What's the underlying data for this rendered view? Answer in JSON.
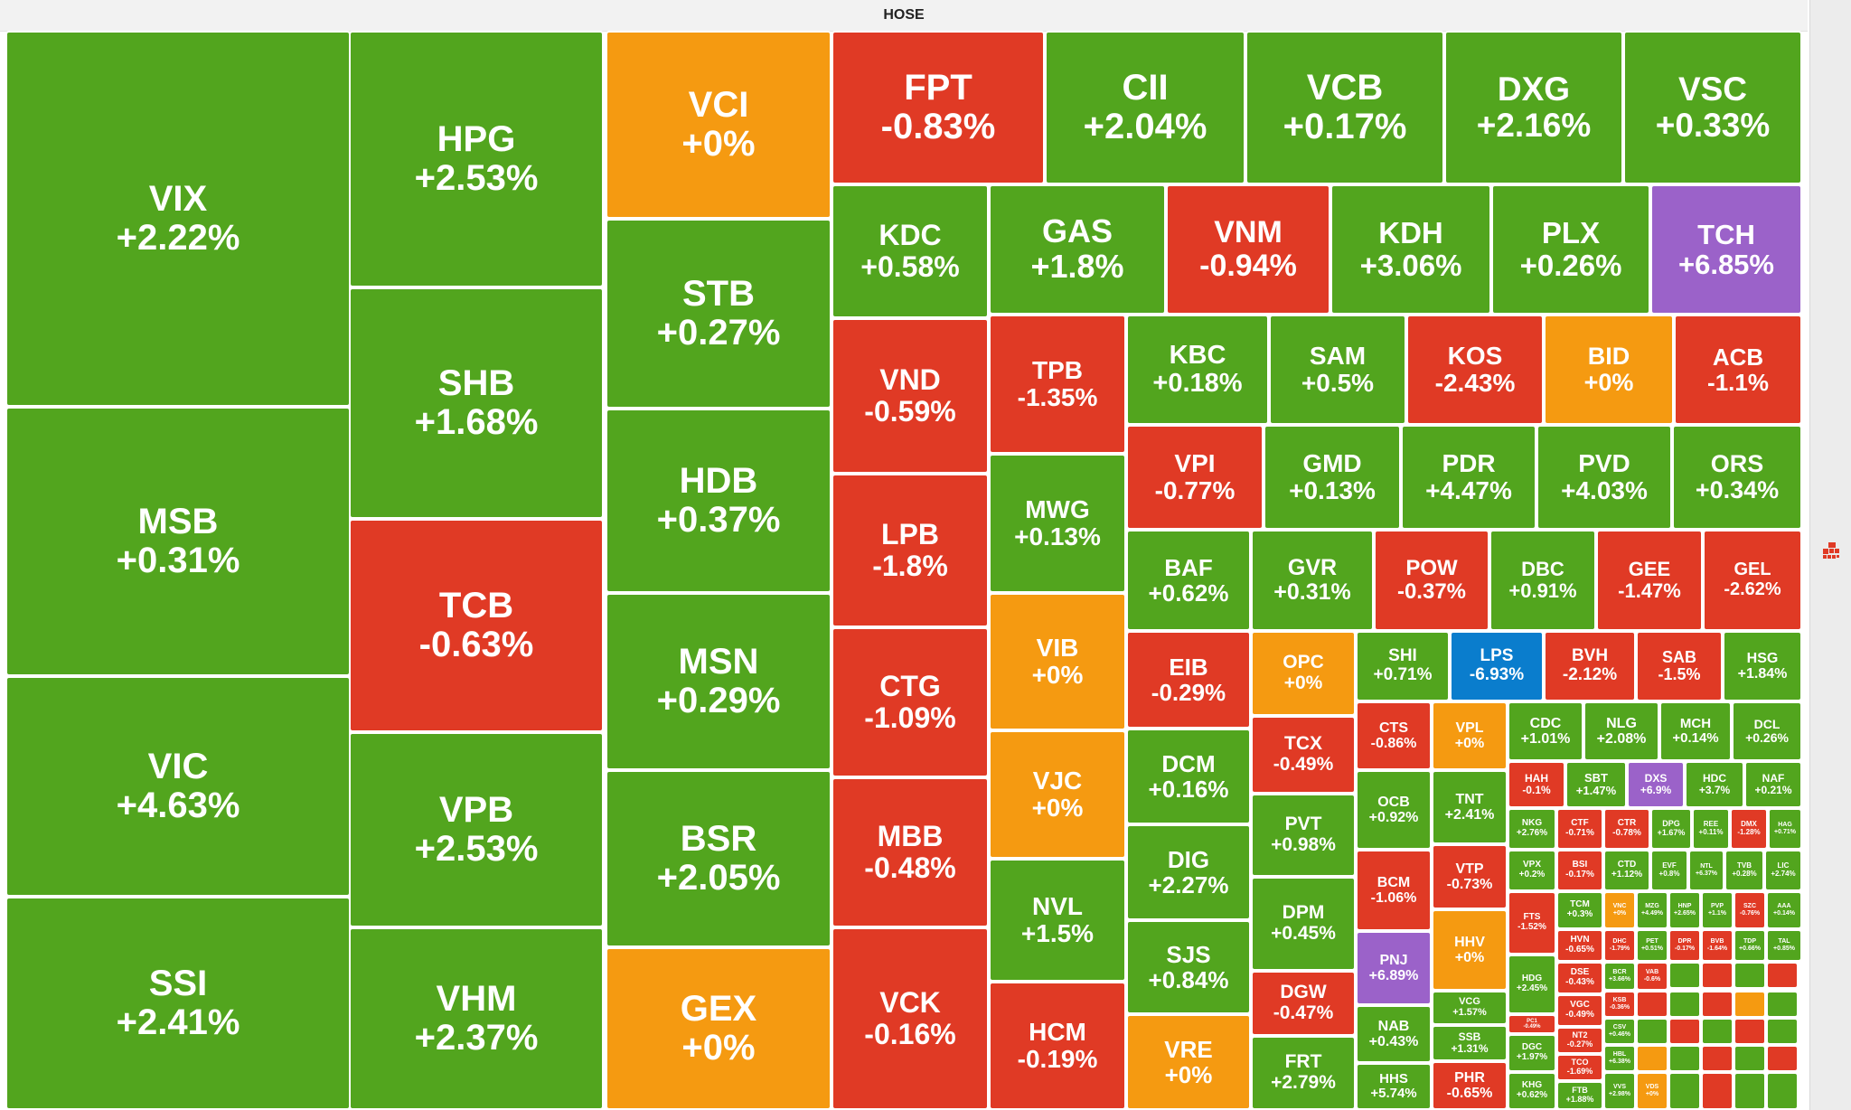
{
  "header": {
    "title": "HOSE"
  },
  "colors": {
    "up": "#52a51e",
    "down": "#e03a25",
    "flat": "#f59a11",
    "ceiling": "#9b62c9",
    "floor": "#0a7dcd"
  },
  "icons": {
    "rail": "treemap-grid-icon"
  },
  "chart_data": {
    "type": "treemap",
    "market": "HOSE",
    "tiles": [
      {
        "symbol": "VIX",
        "change": "+2.22%",
        "value": 2.22
      },
      {
        "symbol": "MSB",
        "change": "+0.31%",
        "value": 0.31
      },
      {
        "symbol": "VIC",
        "change": "+4.63%",
        "value": 4.63
      },
      {
        "symbol": "SSI",
        "change": "+2.41%",
        "value": 2.41
      },
      {
        "symbol": "HPG",
        "change": "+2.53%",
        "value": 2.53
      },
      {
        "symbol": "SHB",
        "change": "+1.68%",
        "value": 1.68
      },
      {
        "symbol": "TCB",
        "change": "-0.63%",
        "value": -0.63
      },
      {
        "symbol": "VPB",
        "change": "+2.53%",
        "value": 2.53
      },
      {
        "symbol": "VHM",
        "change": "+2.37%",
        "value": 2.37
      },
      {
        "symbol": "VCI",
        "change": "+0%",
        "value": 0
      },
      {
        "symbol": "STB",
        "change": "+0.27%",
        "value": 0.27
      },
      {
        "symbol": "HDB",
        "change": "+0.37%",
        "value": 0.37
      },
      {
        "symbol": "MSN",
        "change": "+0.29%",
        "value": 0.29
      },
      {
        "symbol": "BSR",
        "change": "+2.05%",
        "value": 2.05
      },
      {
        "symbol": "GEX",
        "change": "+0%",
        "value": 0
      },
      {
        "symbol": "FPT",
        "change": "-0.83%",
        "value": -0.83
      },
      {
        "symbol": "CII",
        "change": "+2.04%",
        "value": 2.04
      },
      {
        "symbol": "VCB",
        "change": "+0.17%",
        "value": 0.17
      },
      {
        "symbol": "DXG",
        "change": "+2.16%",
        "value": 2.16
      },
      {
        "symbol": "VSC",
        "change": "+0.33%",
        "value": 0.33
      },
      {
        "symbol": "KDC",
        "change": "+0.58%",
        "value": 0.58
      },
      {
        "symbol": "VND",
        "change": "-0.59%",
        "value": -0.59
      },
      {
        "symbol": "LPB",
        "change": "-1.8%",
        "value": -1.8
      },
      {
        "symbol": "CTG",
        "change": "-1.09%",
        "value": -1.09
      },
      {
        "symbol": "MBB",
        "change": "-0.48%",
        "value": -0.48
      },
      {
        "symbol": "VCK",
        "change": "-0.16%",
        "value": -0.16
      },
      {
        "symbol": "GAS",
        "change": "+1.8%",
        "value": 1.8
      },
      {
        "symbol": "VNM",
        "change": "-0.94%",
        "value": -0.94
      },
      {
        "symbol": "KDH",
        "change": "+3.06%",
        "value": 3.06
      },
      {
        "symbol": "PLX",
        "change": "+0.26%",
        "value": 0.26
      },
      {
        "symbol": "TCH",
        "change": "+6.85%",
        "value": 6.85
      },
      {
        "symbol": "TPB",
        "change": "-1.35%",
        "value": -1.35
      },
      {
        "symbol": "MWG",
        "change": "+0.13%",
        "value": 0.13
      },
      {
        "symbol": "VIB",
        "change": "+0%",
        "value": 0
      },
      {
        "symbol": "VJC",
        "change": "+0%",
        "value": 0
      },
      {
        "symbol": "NVL",
        "change": "+1.5%",
        "value": 1.5
      },
      {
        "symbol": "HCM",
        "change": "-0.19%",
        "value": -0.19
      },
      {
        "symbol": "KBC",
        "change": "+0.18%",
        "value": 0.18
      },
      {
        "symbol": "SAM",
        "change": "+0.5%",
        "value": 0.5
      },
      {
        "symbol": "KOS",
        "change": "-2.43%",
        "value": -2.43
      },
      {
        "symbol": "BID",
        "change": "+0%",
        "value": 0
      },
      {
        "symbol": "ACB",
        "change": "-1.1%",
        "value": -1.1
      },
      {
        "symbol": "VPI",
        "change": "-0.77%",
        "value": -0.77
      },
      {
        "symbol": "GMD",
        "change": "+0.13%",
        "value": 0.13
      },
      {
        "symbol": "PDR",
        "change": "+4.47%",
        "value": 4.47
      },
      {
        "symbol": "PVD",
        "change": "+4.03%",
        "value": 4.03
      },
      {
        "symbol": "ORS",
        "change": "+0.34%",
        "value": 0.34
      },
      {
        "symbol": "BAF",
        "change": "+0.62%",
        "value": 0.62
      },
      {
        "symbol": "GVR",
        "change": "+0.31%",
        "value": 0.31
      },
      {
        "symbol": "POW",
        "change": "-0.37%",
        "value": -0.37
      },
      {
        "symbol": "DBC",
        "change": "+0.91%",
        "value": 0.91
      },
      {
        "symbol": "GEE",
        "change": "-1.47%",
        "value": -1.47
      },
      {
        "symbol": "GEL",
        "change": "-2.62%",
        "value": -2.62
      },
      {
        "symbol": "EIB",
        "change": "-0.29%",
        "value": -0.29
      },
      {
        "symbol": "OPC",
        "change": "+0%",
        "value": 0
      },
      {
        "symbol": "SHI",
        "change": "+0.71%",
        "value": 0.71
      },
      {
        "symbol": "LPS",
        "change": "-6.93%",
        "value": -6.93
      },
      {
        "symbol": "BVH",
        "change": "-2.12%",
        "value": -2.12
      },
      {
        "symbol": "SAB",
        "change": "-1.5%",
        "value": -1.5
      },
      {
        "symbol": "HSG",
        "change": "+1.84%",
        "value": 1.84
      },
      {
        "symbol": "DCM",
        "change": "+0.16%",
        "value": 0.16
      },
      {
        "symbol": "TCX",
        "change": "-0.49%",
        "value": -0.49
      },
      {
        "symbol": "CTS",
        "change": "-0.86%",
        "value": -0.86
      },
      {
        "symbol": "VPL",
        "change": "+0%",
        "value": 0
      },
      {
        "symbol": "CDC",
        "change": "+1.01%",
        "value": 1.01
      },
      {
        "symbol": "NLG",
        "change": "+2.08%",
        "value": 2.08
      },
      {
        "symbol": "MCH",
        "change": "+0.14%",
        "value": 0.14
      },
      {
        "symbol": "DCL",
        "change": "+0.26%",
        "value": 0.26
      },
      {
        "symbol": "DIG",
        "change": "+2.27%",
        "value": 2.27
      },
      {
        "symbol": "PVT",
        "change": "+0.98%",
        "value": 0.98
      },
      {
        "symbol": "OCB",
        "change": "+0.92%",
        "value": 0.92
      },
      {
        "symbol": "TNT",
        "change": "+2.41%",
        "value": 2.41
      },
      {
        "symbol": "HAH",
        "change": "-0.1%",
        "value": -0.1
      },
      {
        "symbol": "SBT",
        "change": "+1.47%",
        "value": 1.47
      },
      {
        "symbol": "DXS",
        "change": "+6.9%",
        "value": 6.9
      },
      {
        "symbol": "HDC",
        "change": "+3.7%",
        "value": 3.7
      },
      {
        "symbol": "NAF",
        "change": "+0.21%",
        "value": 0.21
      },
      {
        "symbol": "NKG",
        "change": "+2.76%",
        "value": 2.76
      },
      {
        "symbol": "CTF",
        "change": "-0.71%",
        "value": -0.71
      },
      {
        "symbol": "CTR",
        "change": "-0.78%",
        "value": -0.78
      },
      {
        "symbol": "DPG",
        "change": "+1.67%",
        "value": 1.67
      },
      {
        "symbol": "REE",
        "change": "+0.11%",
        "value": 0.11
      },
      {
        "symbol": "DMX",
        "change": "-1.28%",
        "value": -1.28
      },
      {
        "symbol": "HAG",
        "change": "+0.71%",
        "value": 0.71
      },
      {
        "symbol": "VTP",
        "change": "-0.73%",
        "value": -0.73
      },
      {
        "symbol": "VPX",
        "change": "+0.2%",
        "value": 0.2
      },
      {
        "symbol": "BSI",
        "change": "-0.17%",
        "value": -0.17
      },
      {
        "symbol": "CTD",
        "change": "+1.12%",
        "value": 1.12
      },
      {
        "symbol": "EVF",
        "change": "+0.8%",
        "value": 0.8
      },
      {
        "symbol": "NTL",
        "change": "+6.37%",
        "value": 6.37
      },
      {
        "symbol": "TVB",
        "change": "+0.28%",
        "value": 0.28
      },
      {
        "symbol": "LIC",
        "change": "+2.74%",
        "value": 2.74
      },
      {
        "symbol": "BCM",
        "change": "-1.06%",
        "value": -1.06
      },
      {
        "symbol": "SJS",
        "change": "+0.84%",
        "value": 0.84
      },
      {
        "symbol": "DPM",
        "change": "+0.45%",
        "value": 0.45
      },
      {
        "symbol": "PNJ",
        "change": "+6.89%",
        "value": 6.89
      },
      {
        "symbol": "HHV",
        "change": "+0%",
        "value": 0
      },
      {
        "symbol": "FTS",
        "change": "-1.52%",
        "value": -1.52
      },
      {
        "symbol": "VCG",
        "change": "+1.57%",
        "value": 1.57
      },
      {
        "symbol": "HDG",
        "change": "+2.45%",
        "value": 2.45
      },
      {
        "symbol": "DGW",
        "change": "-0.47%",
        "value": -0.47
      },
      {
        "symbol": "NAB",
        "change": "+0.43%",
        "value": 0.43
      },
      {
        "symbol": "PC1",
        "change": "-0.49%",
        "value": -0.49
      },
      {
        "symbol": "VRE",
        "change": "+0%",
        "value": 0
      },
      {
        "symbol": "SSB",
        "change": "+1.31%",
        "value": 1.31
      },
      {
        "symbol": "DGC",
        "change": "+1.97%",
        "value": 1.97
      },
      {
        "symbol": "FRT",
        "change": "+2.79%",
        "value": 2.79
      },
      {
        "symbol": "HHS",
        "change": "+5.74%",
        "value": 5.74
      },
      {
        "symbol": "PHR",
        "change": "-0.65%",
        "value": -0.65
      },
      {
        "symbol": "KHG",
        "change": "+0.62%",
        "value": 0.62
      },
      {
        "symbol": "TCM",
        "change": "+0.3%",
        "value": 0.3
      },
      {
        "symbol": "VNC",
        "change": "+0%",
        "value": 0
      },
      {
        "symbol": "MZG",
        "change": "+4.49%",
        "value": 4.49
      },
      {
        "symbol": "HNP",
        "change": "+2.65%",
        "value": 2.65
      },
      {
        "symbol": "PVP",
        "change": "+1.1%",
        "value": 1.1
      },
      {
        "symbol": "SZC",
        "change": "-0.76%",
        "value": -0.76
      },
      {
        "symbol": "HVN",
        "change": "-0.65%",
        "value": -0.65
      },
      {
        "symbol": "DHC",
        "change": "-1.79%",
        "value": -1.79
      },
      {
        "symbol": "PET",
        "change": "+0.51%",
        "value": 0.51
      },
      {
        "symbol": "DPR",
        "change": "-0.17%",
        "value": -0.17
      },
      {
        "symbol": "BVB",
        "change": "-1.64%",
        "value": -1.64
      },
      {
        "symbol": "TDP",
        "change": "+0.66%",
        "value": 0.66
      },
      {
        "symbol": "TAL",
        "change": "+0.85%",
        "value": 0.85
      },
      {
        "symbol": "AAA",
        "change": "+0.14%",
        "value": 0.14
      },
      {
        "symbol": "DSE",
        "change": "-0.43%",
        "value": -0.43
      },
      {
        "symbol": "BCR",
        "change": "+3.66%",
        "value": 3.66
      },
      {
        "symbol": "VAB",
        "change": "-0.6%",
        "value": -0.6
      },
      {
        "symbol": "VGC",
        "change": "-0.49%",
        "value": -0.49
      },
      {
        "symbol": "KSB",
        "change": "-0.36%",
        "value": -0.36
      },
      {
        "symbol": "NT2",
        "change": "-0.27%",
        "value": -0.27
      },
      {
        "symbol": "CSV",
        "change": "+0.46%",
        "value": 0.46
      },
      {
        "symbol": "TCO",
        "change": "-1.69%",
        "value": -1.69
      },
      {
        "symbol": "HBL",
        "change": "+6.38%",
        "value": 6.38
      },
      {
        "symbol": "FTB",
        "change": "+1.88%",
        "value": 1.88
      },
      {
        "symbol": "VVS",
        "change": "+2.98%",
        "value": 2.98
      },
      {
        "symbol": "VDS",
        "change": "+0%",
        "value": 0
      }
    ]
  }
}
